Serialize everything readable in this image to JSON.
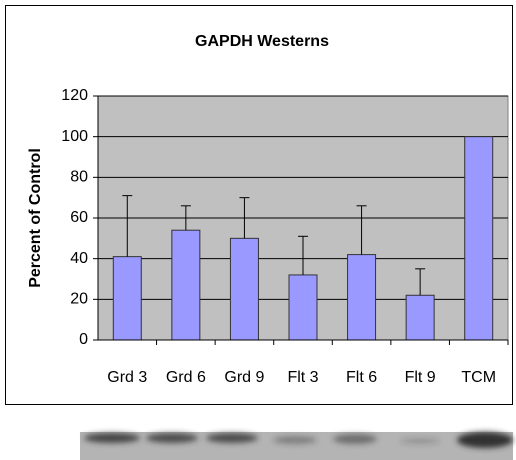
{
  "chart_data": {
    "type": "bar",
    "title": "GAPDH Westerns",
    "y_label": "Percent of Control",
    "categories": [
      "Grd 3",
      "Grd 6",
      "Grd 9",
      "Flt 3",
      "Flt 6",
      "Flt 9",
      "TCM"
    ],
    "values": [
      41,
      54,
      50,
      32,
      42,
      22,
      100
    ],
    "errors": [
      30,
      12,
      20,
      19,
      24,
      13,
      0
    ],
    "color": "#9999ff",
    "plot_background": "#c0c0c0",
    "ylim": [
      0,
      120
    ],
    "yticks": [
      0,
      20,
      40,
      60,
      80,
      100,
      120
    ],
    "grid": true
  }
}
